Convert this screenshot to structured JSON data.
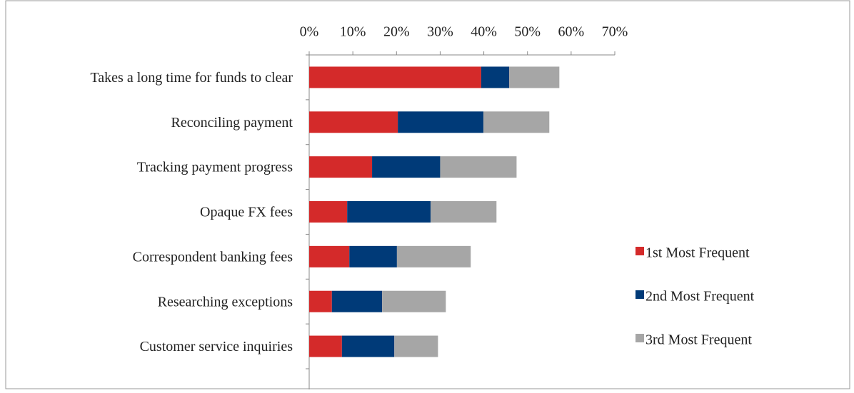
{
  "chart_data": {
    "type": "stacked_barh",
    "categories": [
      "Takes a long time for funds to clear",
      "Reconciling payment",
      "Tracking payment progress",
      "Opaque FX fees",
      "Correspondent banking fees",
      "Researching exceptions",
      "Customer service inquiries"
    ],
    "series": [
      {
        "name": "1st Most Frequent",
        "color": "#d42a2a",
        "values": [
          39.4,
          20.3,
          14.4,
          8.7,
          9.2,
          5.2,
          7.5
        ]
      },
      {
        "name": "2nd Most Frequent",
        "color": "#003a78",
        "values": [
          6.4,
          19.6,
          15.6,
          19.1,
          10.9,
          11.5,
          12
        ]
      },
      {
        "name": "3rd Most Frequent",
        "color": "#a6a6a6",
        "values": [
          11.5,
          15.1,
          17.5,
          15.1,
          16.9,
          14.6,
          10
        ]
      }
    ],
    "xlim": [
      0,
      70
    ],
    "xticks": [
      {
        "value": 0,
        "label": "0%"
      },
      {
        "value": 10,
        "label": "10%"
      },
      {
        "value": 20,
        "label": "20%"
      },
      {
        "value": 30,
        "label": "30%"
      },
      {
        "value": 40,
        "label": "40%"
      },
      {
        "value": 50,
        "label": "50%"
      },
      {
        "value": 60,
        "label": "60%"
      },
      {
        "value": 70,
        "label": "70%"
      }
    ],
    "legend": "right"
  }
}
